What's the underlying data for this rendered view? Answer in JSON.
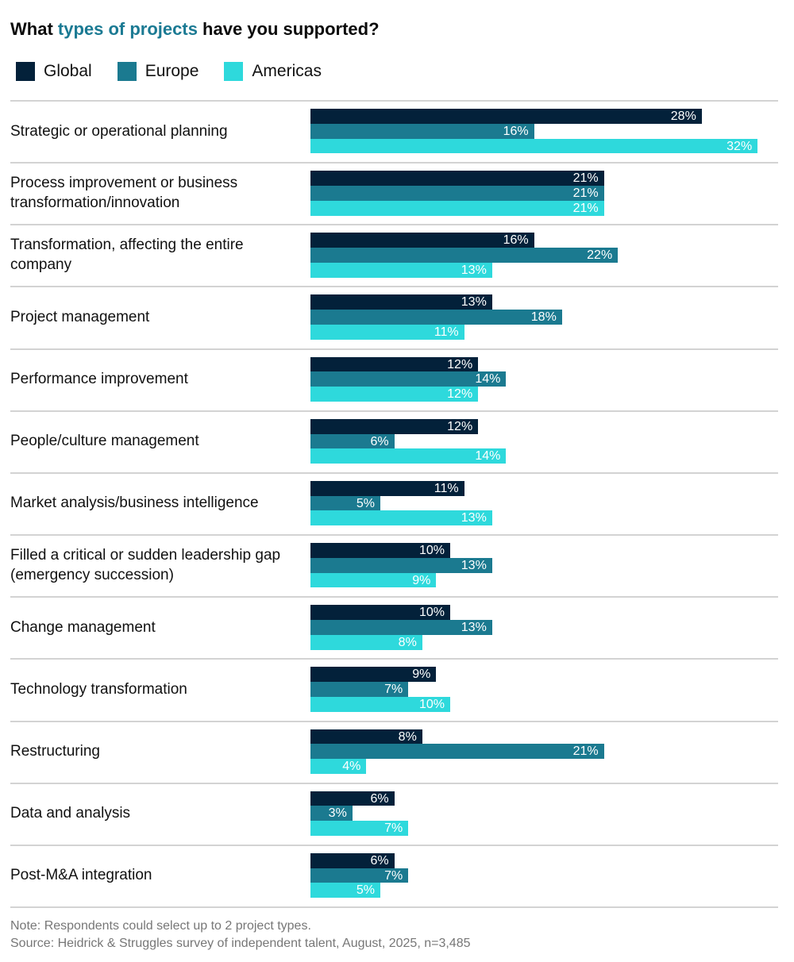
{
  "chart_data": {
    "type": "bar",
    "orientation": "horizontal",
    "title_parts": [
      "What ",
      "types of projects",
      " have you supported?"
    ],
    "title_highlight_color": "#1b7a93",
    "legend_position": "top-left",
    "grid": false,
    "xlim": [
      0,
      32
    ],
    "value_format": "{v}%",
    "categories": [
      "Strategic or operational planning",
      "Process improvement or business transformation/innovation",
      "Transformation, affecting the entire company",
      "Project management",
      "Performance improvement",
      "People/culture management",
      "Market analysis/business intelligence",
      "Filled a critical or sudden leadership gap (emergency succession)",
      "Change management",
      "Technology transformation",
      "Restructuring",
      "Data and analysis",
      "Post-M&A integration"
    ],
    "series": [
      {
        "name": "Global",
        "color": "#03213a",
        "values": [
          28,
          21,
          16,
          13,
          12,
          12,
          11,
          10,
          10,
          9,
          8,
          6,
          6
        ]
      },
      {
        "name": "Europe",
        "color": "#1b7a90",
        "values": [
          16,
          21,
          22,
          18,
          14,
          6,
          5,
          13,
          13,
          7,
          21,
          3,
          7
        ]
      },
      {
        "name": "Americas",
        "color": "#2ed9dc",
        "values": [
          32,
          21,
          13,
          11,
          12,
          14,
          13,
          9,
          8,
          10,
          4,
          7,
          5
        ]
      }
    ],
    "notes": [
      "Note: Respondents could select up to 2 project types.",
      "Source: Heidrick & Struggles survey of independent talent, August, 2025, n=3,485"
    ]
  }
}
